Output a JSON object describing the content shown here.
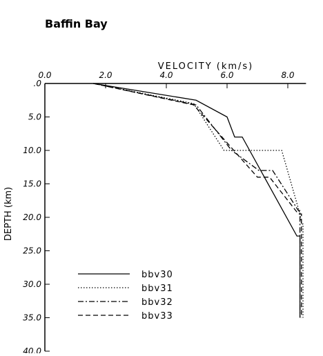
{
  "chart_data": {
    "type": "line",
    "title": "Baffin Bay",
    "x_label": "VELOCITY (km/s)",
    "y_label": "DEPTH (km)",
    "xlim": [
      0,
      8.6
    ],
    "ylim": [
      0,
      40
    ],
    "y_inverted": true,
    "xticks": [
      {
        "value": 0,
        "label": "0.0"
      },
      {
        "value": 2,
        "label": "2.0"
      },
      {
        "value": 4,
        "label": "4.0"
      },
      {
        "value": 6,
        "label": "6.0"
      },
      {
        "value": 8,
        "label": "8.0"
      }
    ],
    "yticks": [
      {
        "value": 0,
        "label": ".0"
      },
      {
        "value": 5,
        "label": "5.0"
      },
      {
        "value": 10,
        "label": "10.0"
      },
      {
        "value": 15,
        "label": "15.0"
      },
      {
        "value": 20,
        "label": "20.0"
      },
      {
        "value": 25,
        "label": "25.0"
      },
      {
        "value": 30,
        "label": "30.0"
      },
      {
        "value": 35,
        "label": "35.0"
      },
      {
        "value": 40,
        "label": "40.0"
      }
    ],
    "series": [
      {
        "name": "bbv30",
        "color": "#000000",
        "dash": "solid",
        "x": [
          1.6,
          4.98,
          6.0,
          6.25,
          6.5,
          8.3,
          8.4,
          8.4
        ],
        "values": [
          0,
          2.5,
          5.0,
          8.0,
          8.0,
          22.8,
          22.8,
          35
        ]
      },
      {
        "name": "bbv31",
        "color": "#000000",
        "dash": "dotted",
        "x": [
          1.6,
          4.9,
          5.9,
          7.8,
          8.4,
          8.45,
          8.5,
          8.5
        ],
        "values": [
          0,
          3.0,
          10,
          10,
          19.5,
          21,
          21,
          35
        ]
      },
      {
        "name": "bbv32",
        "color": "#000000",
        "dash": "dashdot",
        "x": [
          1.6,
          4.98,
          6.15,
          7.05,
          7.5,
          8.35,
          8.4,
          8.4
        ],
        "values": [
          0,
          3.2,
          10,
          13,
          13,
          19,
          19,
          35
        ]
      },
      {
        "name": "bbv33",
        "color": "#000000",
        "dash": "dashed",
        "x": [
          1.6,
          4.9,
          7.0,
          7.4,
          8.35,
          8.45,
          8.45
        ],
        "values": [
          0,
          3.2,
          14,
          14,
          19.5,
          19.5,
          35
        ]
      }
    ]
  }
}
